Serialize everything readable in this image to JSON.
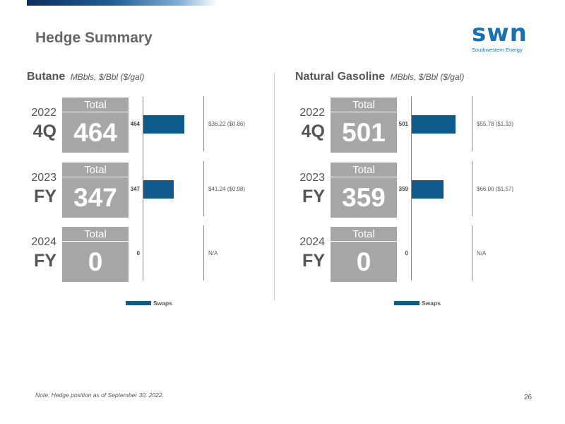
{
  "header": {
    "title": "Hedge Summary"
  },
  "logo": {
    "mark": "swn",
    "subtitle": "Southwestern Energy"
  },
  "legend": {
    "label": "Swaps"
  },
  "footer": {
    "note": "Note: Hedge position as of September 30, 2022.",
    "page": "26"
  },
  "colors": {
    "swaps": "#0e5a8a",
    "total_box": "#a6a6a6"
  },
  "chart_data": [
    {
      "type": "bar",
      "orientation": "horizontal",
      "title": "Butane",
      "units": "MBbls, $/Bbl ($/gal)",
      "series": [
        {
          "name": "Swaps",
          "values": [
            464,
            347,
            0
          ]
        }
      ],
      "rows": [
        {
          "year": "2022",
          "period": "4Q",
          "total_label": "Total",
          "total": "464",
          "volume": "464",
          "value": 464,
          "price": "$36.22 ($0.86)"
        },
        {
          "year": "2023",
          "period": "FY",
          "total_label": "Total",
          "total": "347",
          "volume": "347",
          "value": 347,
          "price": "$41.24 ($0.98)"
        },
        {
          "year": "2024",
          "period": "FY",
          "total_label": "Total",
          "total": "0",
          "volume": "0",
          "value": 0,
          "price": "N/A"
        }
      ],
      "xlim": [
        0,
        700
      ]
    },
    {
      "type": "bar",
      "orientation": "horizontal",
      "title": "Natural Gasoline",
      "units": "MBbls, $/Bbl ($/gal)",
      "series": [
        {
          "name": "Swaps",
          "values": [
            501,
            359,
            0
          ]
        }
      ],
      "rows": [
        {
          "year": "2022",
          "period": "4Q",
          "total_label": "Total",
          "total": "501",
          "volume": "501",
          "value": 501,
          "price": "$55.78 ($1.33)"
        },
        {
          "year": "2023",
          "period": "FY",
          "total_label": "Total",
          "total": "359",
          "volume": "359",
          "value": 359,
          "price": "$66.00 ($1.57)"
        },
        {
          "year": "2024",
          "period": "FY",
          "total_label": "Total",
          "total": "0",
          "volume": "0",
          "value": 0,
          "price": "N/A"
        }
      ],
      "xlim": [
        0,
        700
      ]
    }
  ]
}
